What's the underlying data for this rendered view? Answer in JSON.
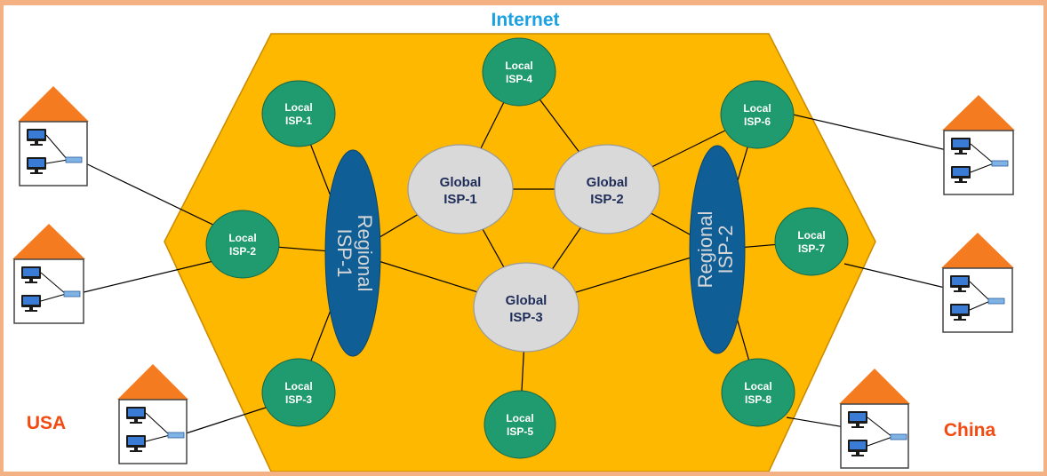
{
  "title": "Internet",
  "colors": {
    "frame": "#f4b183",
    "background": "#ffffff",
    "hexagon": "#ffb800",
    "hexagon_stroke": "#c98a00",
    "local_isp": "#1f9b6f",
    "global_isp": "#d9d9d9",
    "regional_isp": "#0f5e96",
    "title_text": "#1ba1e2",
    "country_text": "#f24a10",
    "global_text": "#1f2d5a",
    "house_roof": "#f47b20"
  },
  "countries": {
    "left": "USA",
    "right": "China"
  },
  "local_isps": [
    {
      "id": "local-isp-1",
      "line1": "Local",
      "line2": "ISP-1"
    },
    {
      "id": "local-isp-2",
      "line1": "Local",
      "line2": "ISP-2"
    },
    {
      "id": "local-isp-3",
      "line1": "Local",
      "line2": "ISP-3"
    },
    {
      "id": "local-isp-4",
      "line1": "Local",
      "line2": "ISP-4"
    },
    {
      "id": "local-isp-5",
      "line1": "Local",
      "line2": "ISP-5"
    },
    {
      "id": "local-isp-6",
      "line1": "Local",
      "line2": "ISP-6"
    },
    {
      "id": "local-isp-7",
      "line1": "Local",
      "line2": "ISP-7"
    },
    {
      "id": "local-isp-8",
      "line1": "Local",
      "line2": "ISP-8"
    }
  ],
  "global_isps": [
    {
      "id": "global-isp-1",
      "line1": "Global",
      "line2": "ISP-1"
    },
    {
      "id": "global-isp-2",
      "line1": "Global",
      "line2": "ISP-2"
    },
    {
      "id": "global-isp-3",
      "line1": "Global",
      "line2": "ISP-3"
    }
  ],
  "regional_isps": [
    {
      "id": "regional-isp-1",
      "line1": "Regional",
      "line2": "ISP-1"
    },
    {
      "id": "regional-isp-2",
      "line1": "Regional",
      "line2": "ISP-2"
    }
  ],
  "connections": [
    [
      "local-isp-1",
      "regional-isp-1"
    ],
    [
      "local-isp-2",
      "regional-isp-1"
    ],
    [
      "local-isp-3",
      "regional-isp-1"
    ],
    [
      "regional-isp-1",
      "global-isp-1"
    ],
    [
      "regional-isp-1",
      "global-isp-3"
    ],
    [
      "global-isp-1",
      "local-isp-4"
    ],
    [
      "local-isp-4",
      "global-isp-2"
    ],
    [
      "global-isp-1",
      "global-isp-2"
    ],
    [
      "global-isp-1",
      "global-isp-3"
    ],
    [
      "global-isp-2",
      "global-isp-3"
    ],
    [
      "global-isp-2",
      "local-isp-6"
    ],
    [
      "global-isp-2",
      "regional-isp-2"
    ],
    [
      "global-isp-3",
      "local-isp-5"
    ],
    [
      "global-isp-3",
      "regional-isp-2"
    ],
    [
      "regional-isp-2",
      "local-isp-6"
    ],
    [
      "regional-isp-2",
      "local-isp-7"
    ],
    [
      "regional-isp-2",
      "local-isp-8"
    ]
  ],
  "houses": [
    {
      "id": "house-usa-1",
      "connects_to": "local-isp-2"
    },
    {
      "id": "house-usa-2",
      "connects_to": "local-isp-2"
    },
    {
      "id": "house-usa-3",
      "connects_to": "local-isp-3"
    },
    {
      "id": "house-china-1",
      "connects_to": "local-isp-6"
    },
    {
      "id": "house-china-2",
      "connects_to": "local-isp-7"
    },
    {
      "id": "house-china-3",
      "connects_to": "local-isp-8"
    }
  ]
}
